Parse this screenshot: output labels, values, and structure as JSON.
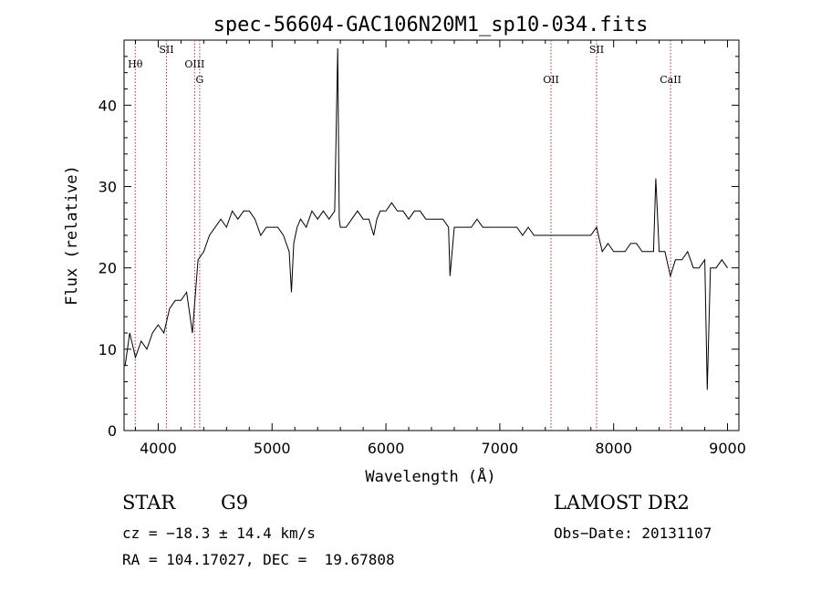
{
  "chart_data": {
    "type": "line",
    "title": "spec-56604-GAC106N20M1_sp10-034.fits",
    "xlabel": "Wavelength (Å)",
    "ylabel": "Flux (relative)",
    "xlim": [
      3700,
      9100
    ],
    "ylim": [
      0,
      48
    ],
    "x_ticks": [
      4000,
      5000,
      6000,
      7000,
      8000,
      9000
    ],
    "y_ticks": [
      0,
      10,
      20,
      30,
      40
    ],
    "grid": false,
    "line_color": "#000000",
    "marker_color": "#b03030",
    "spectral_lines": [
      {
        "label": "Hθ",
        "wavelength": 3798,
        "tier": 1
      },
      {
        "label": "SII",
        "wavelength": 4072,
        "tier": 0
      },
      {
        "label": "OIII",
        "wavelength": 4320,
        "tier": 1
      },
      {
        "label": "G",
        "wavelength": 4364,
        "tier": 2
      },
      {
        "label": "OII",
        "wavelength": 7450,
        "tier": 2
      },
      {
        "label": "SII",
        "wavelength": 7850,
        "tier": 0
      },
      {
        "label": "CaII",
        "wavelength": 8500,
        "tier": 2
      }
    ],
    "series": [
      {
        "x": [
          3710,
          3750,
          3800,
          3850,
          3900,
          3950,
          4000,
          4050,
          4100,
          4150,
          4200,
          4250,
          4300,
          4350,
          4400,
          4450,
          4500,
          4550,
          4600,
          4650,
          4700,
          4750,
          4800,
          4850,
          4900,
          4950,
          5000,
          5050,
          5100,
          5150,
          5170,
          5190,
          5220,
          5250,
          5300,
          5350,
          5400,
          5450,
          5500,
          5550,
          5576,
          5590,
          5600,
          5650,
          5700,
          5750,
          5800,
          5850,
          5893,
          5920,
          5950,
          6000,
          6050,
          6100,
          6150,
          6200,
          6250,
          6300,
          6350,
          6400,
          6450,
          6500,
          6550,
          6563,
          6600,
          6650,
          6700,
          6750,
          6800,
          6850,
          6900,
          6950,
          7000,
          7050,
          7100,
          7150,
          7200,
          7250,
          7300,
          7350,
          7400,
          7450,
          7500,
          7550,
          7600,
          7650,
          7700,
          7750,
          7800,
          7850,
          7900,
          7950,
          8000,
          8050,
          8100,
          8150,
          8200,
          8250,
          8300,
          8350,
          8370,
          8400,
          8450,
          8498,
          8542,
          8600,
          8650,
          8700,
          8750,
          8800,
          8822,
          8850,
          8900,
          8950,
          9000
        ],
        "y": [
          8,
          12,
          9,
          11,
          10,
          12,
          13,
          12,
          15,
          16,
          16,
          17,
          12,
          21,
          22,
          24,
          25,
          26,
          25,
          27,
          26,
          27,
          27,
          26,
          24,
          25,
          25,
          25,
          24,
          22,
          17,
          23,
          25,
          26,
          25,
          27,
          26,
          27,
          26,
          27,
          47,
          26,
          25,
          25,
          26,
          27,
          26,
          26,
          24,
          26,
          27,
          27,
          28,
          27,
          27,
          26,
          27,
          27,
          26,
          26,
          26,
          26,
          25,
          19,
          25,
          25,
          25,
          25,
          26,
          25,
          25,
          25,
          25,
          25,
          25,
          25,
          24,
          25,
          24,
          24,
          24,
          24,
          24,
          24,
          24,
          24,
          24,
          24,
          24,
          25,
          22,
          23,
          22,
          22,
          22,
          23,
          23,
          22,
          22,
          22,
          31,
          22,
          22,
          19,
          21,
          21,
          22,
          20,
          20,
          21,
          5,
          20,
          20,
          21,
          20
        ]
      }
    ]
  },
  "footer": {
    "object_type": "STAR",
    "subclass": "G9",
    "survey": "LAMOST DR2",
    "cz": "cz = −18.3 ± 14.4 km/s",
    "obs_date": "Obs−Date: 20131107",
    "coords": "RA = 104.17027, DEC =  19.67808"
  }
}
